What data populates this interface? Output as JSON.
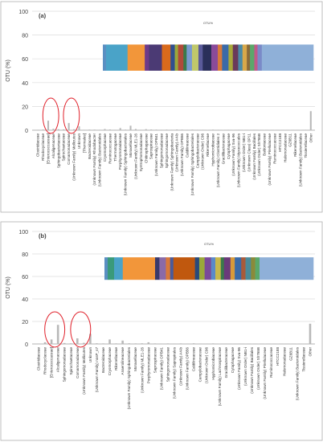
{
  "colors": {
    "bar": "#b8b8b8",
    "highlight": "#e0202a",
    "grid": "#dcdcdc",
    "axis": "#9a9a9a",
    "panel_border": "#b0b0b0",
    "stack_fill": "#8fb0d8"
  },
  "chart_data": [
    {
      "type": "bar",
      "panel_label": "(a)",
      "ylabel": "OTU (%)",
      "ylim": [
        0,
        100
      ],
      "yticks": [
        0,
        20,
        40,
        60,
        80,
        100
      ],
      "grid": true,
      "inset_title": "OTU%",
      "categories": [
        "Clostridiaceae",
        "Rhodocyclaceae",
        "[Enterococcaceae]",
        "Alcaligenaceae",
        "Sphingobacteriaceae",
        "Spirochaetaceae",
        "Comamonadaceae",
        "(Unknown Family) Mollicutes",
        "Unknown",
        "[Thermales]",
        "Bacteroidaceae",
        "(Unknown Family) Rhodobacter",
        "(Unknown Family) Bacteroidales",
        "Cryomorphaceae",
        "Ruminococcaceae",
        "Thermotogaceae",
        "Porphyromonadaceae",
        "(Unknown Family) Sphingobacteriales",
        "Moraxellaceae",
        "(Unknown Family) MLE1-26",
        "Syntrophomonadaceae",
        "Chitinophagaceae",
        "Saprospiraceae",
        "(Unknown Family) OPB41",
        "Sphingomonadaceae",
        "Sphingomonadaceae",
        "(Unknown Family) Sphingobacteria",
        "(Unknown Family) A4-b",
        "(Unknown Family) OPB56",
        "Caldilineaceae",
        "(Unknown Family) Sphingobacteriales",
        "Campylobacteraceae",
        "(Unknown Order) C96",
        "Rikenellaceae",
        "Hyphomicrobiaceae",
        "(Unknown Family) Clostridiales 2",
        "Gracilibacteraceae",
        "Cytophagaceae",
        "(Unknown Family) Sva-96",
        "(Unknown Family) Myxococcales",
        "(Unknown Order) NB1-i",
        "(Unknown Class) OP11",
        "(Unknown Family) Bacillales",
        "(Unknown Order) Sh765B",
        "Baldoniaceae",
        "(Unknown Family) Pirellulaceae",
        "Ruminococcaceae",
        "HTCC2188",
        "Halomonadaceae",
        "GZ6B11",
        "Rikenellaceae",
        "(Unknown Family) Bacteroidales",
        "Tissierellaceae",
        "Other"
      ],
      "values": [
        0.4,
        0.6,
        8.0,
        1.2,
        0.8,
        0.7,
        6.0,
        0.8,
        3.2,
        0.4,
        0.5,
        0.5,
        0.4,
        1.0,
        0.6,
        0.4,
        1.8,
        0.5,
        3.8,
        1.0,
        0.4,
        0.9,
        0.6,
        0.5,
        0.4,
        0.5,
        0.4,
        0.6,
        0.5,
        0.4,
        0.5,
        0.4,
        0.4,
        0.3,
        0.5,
        0.4,
        0.3,
        0.4,
        0.3,
        0.4,
        0.3,
        0.3,
        0.4,
        0.3,
        0.3,
        0.3,
        0.3,
        0.3,
        0.2,
        0.3,
        0.2,
        0.3,
        0.4,
        16.0
      ],
      "highlighted_categories": [
        2,
        6
      ],
      "inset_bottom_pct": 50,
      "inset_top_pct": 72,
      "inset_segments": [
        {
          "value": 1.5,
          "color": "#5a8fc2"
        },
        {
          "value": 10,
          "color": "#4aa3c8"
        },
        {
          "value": 8,
          "color": "#f2963a"
        },
        {
          "value": 2,
          "color": "#6e3b8a"
        },
        {
          "value": 6,
          "color": "#4b3a74"
        },
        {
          "value": 4,
          "color": "#d96a1c"
        },
        {
          "value": 2,
          "color": "#2f4f8f"
        },
        {
          "value": 1.5,
          "color": "#9aa83a"
        },
        {
          "value": 2.5,
          "color": "#b04a3a"
        },
        {
          "value": 1.5,
          "color": "#3a7a4a"
        },
        {
          "value": 2.5,
          "color": "#7a9ad0"
        },
        {
          "value": 3,
          "color": "#c0c86a"
        },
        {
          "value": 2,
          "color": "#5a5a9a"
        },
        {
          "value": 4,
          "color": "#2a2f5a"
        },
        {
          "value": 3,
          "color": "#8a4a9a"
        },
        {
          "value": 2,
          "color": "#d8783a"
        },
        {
          "value": 3,
          "color": "#3a6aa8"
        },
        {
          "value": 2,
          "color": "#a8a83a"
        },
        {
          "value": 2.5,
          "color": "#6a3a5a"
        },
        {
          "value": 2,
          "color": "#4a8aa8"
        },
        {
          "value": 2,
          "color": "#d8a84a"
        },
        {
          "value": 1.5,
          "color": "#8a6a3a"
        },
        {
          "value": 2,
          "color": "#5aa86a"
        },
        {
          "value": 1.5,
          "color": "#c05a8a"
        },
        {
          "value": 2,
          "color": "#7a8ac8"
        },
        {
          "value": 24,
          "color": "#8fb0d8"
        }
      ]
    },
    {
      "type": "bar",
      "panel_label": "(b)",
      "ylabel": "OTU (%)",
      "ylim": [
        0,
        100
      ],
      "yticks": [
        0,
        20,
        40,
        60,
        80,
        100
      ],
      "grid": true,
      "inset_title": "OTU%",
      "categories": [
        "Clostridiaceae",
        "Rhodocyclaceae",
        "[Enterococcaceae]",
        "Alcaligenaceae",
        "Sphingomonadaceae",
        "Spirochaetaceae",
        "Comamonadaceae",
        "(Unknown Family) Mollicutes",
        "Unknown",
        "(Unknown Family) nosP_s7",
        "Bacteroidaceae",
        "Cryomorphaceae",
        "Rikenellaceae",
        "Anaerolineaceae",
        "(Unknown Family) Sphingobacteriales",
        "Moraxellaceae",
        "(Unknown Family) MLE1-26",
        "Porphyromonadaceae",
        "Saprospiraceae",
        "(Unknown Family) OPB41",
        "Sphingomonadaceae",
        "(Unknown Family) Sapropirales",
        "(Unknown Family) A4-b",
        "(Unknown Family) OPB56",
        "Caldilineaceae",
        "Campylobacteraceae",
        "(Unknown Order) C96",
        "Hyphomicrobiaceae",
        "(Unknown Family) Lachnospiraceae",
        "Gracilibacteraceae",
        "Cytophagaceae",
        "(Unknown Family) Sva-96",
        "(Unknown Order) NB1-i",
        "(Unknown Family) Bacillales",
        "(Unknown Order) Sh765B",
        "(Unknown Family) Pirellulaceae",
        "Ruminococcaceae",
        "HTCC2188",
        "Halomonadaceae",
        "GZ6B11",
        "(Unknown Family) Bacteroidales",
        "Tissierellaceae",
        "Other"
      ],
      "values": [
        0.4,
        1.5,
        4.0,
        17.0,
        0.8,
        0.6,
        5.0,
        1.0,
        9.0,
        0.6,
        0.5,
        4.0,
        0.5,
        3.0,
        0.6,
        0.5,
        0.6,
        1.5,
        0.5,
        0.4,
        0.5,
        0.4,
        0.5,
        0.4,
        0.6,
        0.4,
        0.4,
        0.5,
        0.3,
        0.4,
        0.3,
        0.4,
        0.3,
        0.3,
        0.3,
        0.3,
        0.3,
        0.3,
        0.2,
        0.3,
        0.3,
        0.2,
        18.0
      ],
      "highlighted_categories": [
        2,
        6
      ],
      "inset_bottom_pct": 57,
      "inset_top_pct": 77,
      "inset_segments": [
        {
          "value": 1.5,
          "color": "#5a8fc2"
        },
        {
          "value": 3,
          "color": "#3a9a7a"
        },
        {
          "value": 4,
          "color": "#4aa3c8"
        },
        {
          "value": 15,
          "color": "#f2963a"
        },
        {
          "value": 2,
          "color": "#3a3a6a"
        },
        {
          "value": 3,
          "color": "#8a6aa8"
        },
        {
          "value": 2,
          "color": "#d8783a"
        },
        {
          "value": 1.5,
          "color": "#4a5a9a"
        },
        {
          "value": 10,
          "color": "#c0580e"
        },
        {
          "value": 2,
          "color": "#2a4a7a"
        },
        {
          "value": 2.5,
          "color": "#9aa83a"
        },
        {
          "value": 3,
          "color": "#7a4a9a"
        },
        {
          "value": 2,
          "color": "#5a8ac8"
        },
        {
          "value": 2.5,
          "color": "#c8b84a"
        },
        {
          "value": 1.5,
          "color": "#3a7a4a"
        },
        {
          "value": 3,
          "color": "#6a3a7a"
        },
        {
          "value": 2,
          "color": "#d89a3a"
        },
        {
          "value": 3,
          "color": "#3a6aa8"
        },
        {
          "value": 2,
          "color": "#a85a3a"
        },
        {
          "value": 2.5,
          "color": "#4a8a9a"
        },
        {
          "value": 2,
          "color": "#8a8a3a"
        },
        {
          "value": 2,
          "color": "#5aa86a"
        },
        {
          "value": 25,
          "color": "#8fb0d8"
        }
      ]
    }
  ]
}
